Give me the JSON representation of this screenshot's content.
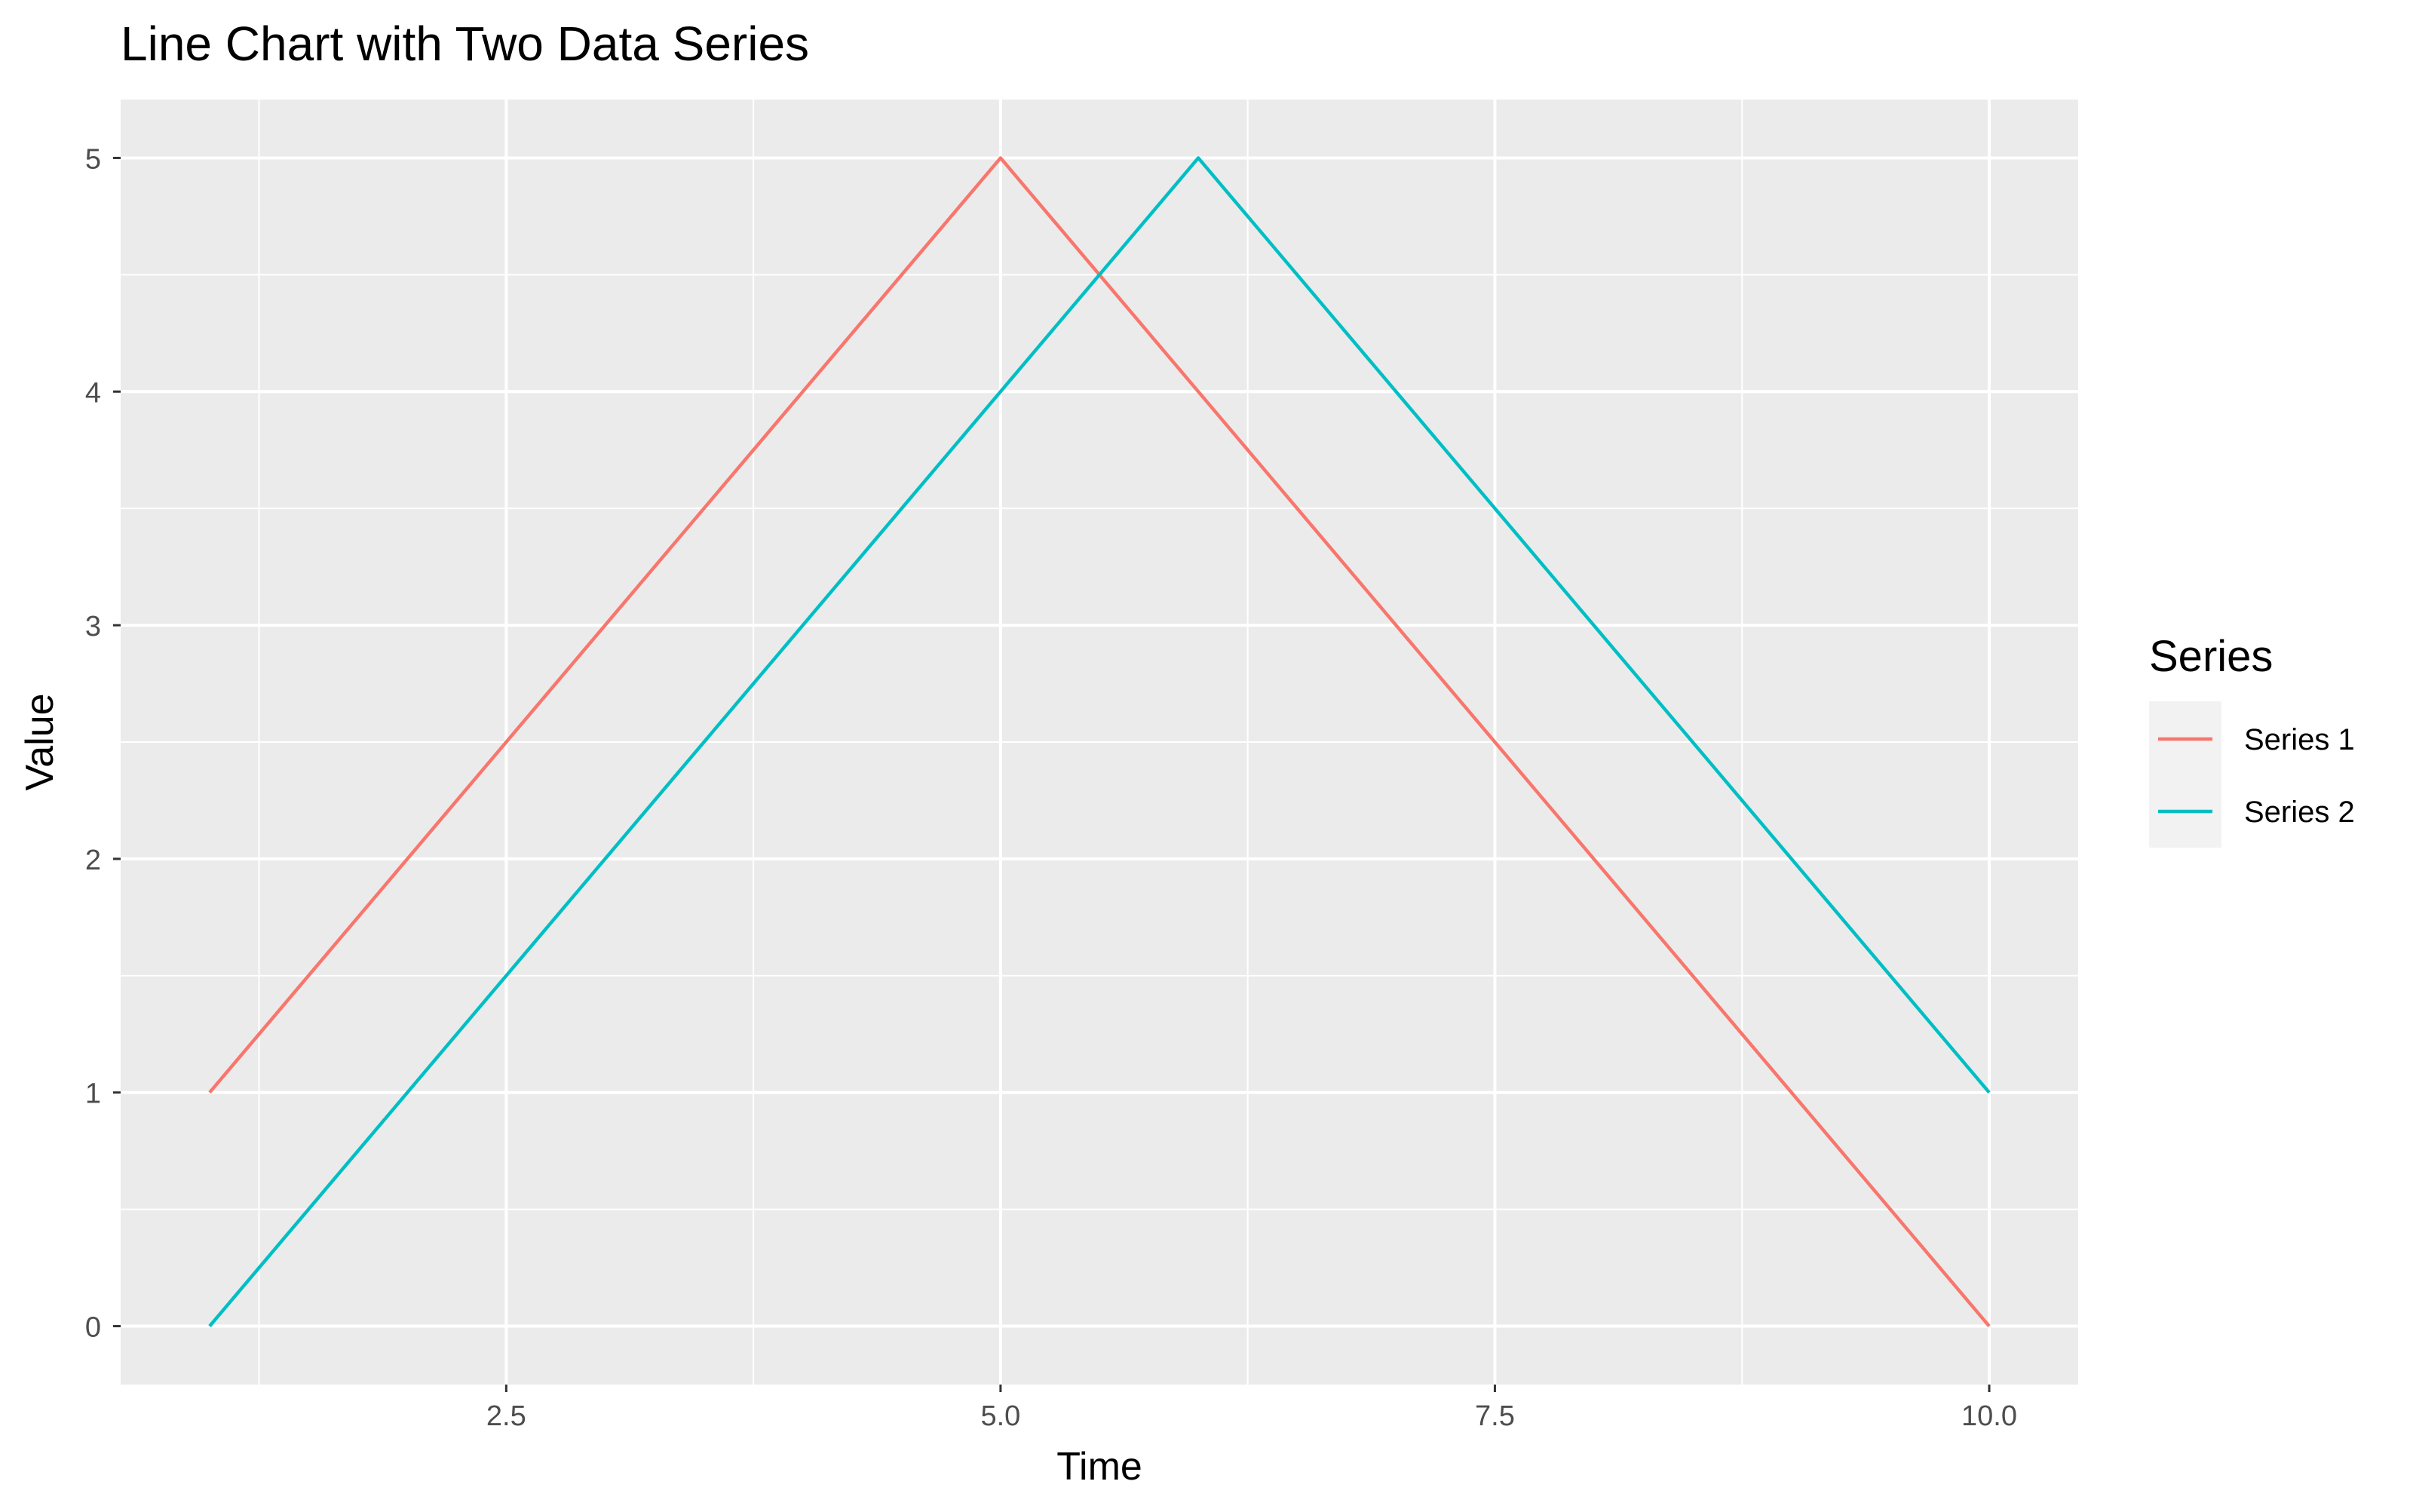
{
  "chart_data": {
    "type": "line",
    "title": "Line Chart with Two Data Series",
    "xlabel": "Time",
    "ylabel": "Value",
    "xlim": [
      0.55,
      10.45
    ],
    "ylim": [
      -0.25,
      5.25
    ],
    "x_ticks": [
      2.5,
      5.0,
      7.5,
      10.0
    ],
    "x_tick_labels": [
      "2.5",
      "5.0",
      "7.5",
      "10.0"
    ],
    "y_ticks": [
      0,
      1,
      2,
      3,
      4,
      5
    ],
    "y_tick_labels": [
      "0",
      "1",
      "2",
      "3",
      "4",
      "5"
    ],
    "grid": true,
    "legend": {
      "title": "Series",
      "placement": "right"
    },
    "series": [
      {
        "name": "Series 1",
        "color": "#F8766D",
        "x": [
          1,
          5,
          10
        ],
        "y": [
          1,
          5,
          0
        ]
      },
      {
        "name": "Series 2",
        "color": "#00BFC4",
        "x": [
          1,
          6,
          10
        ],
        "y": [
          0,
          5,
          1
        ]
      }
    ]
  }
}
